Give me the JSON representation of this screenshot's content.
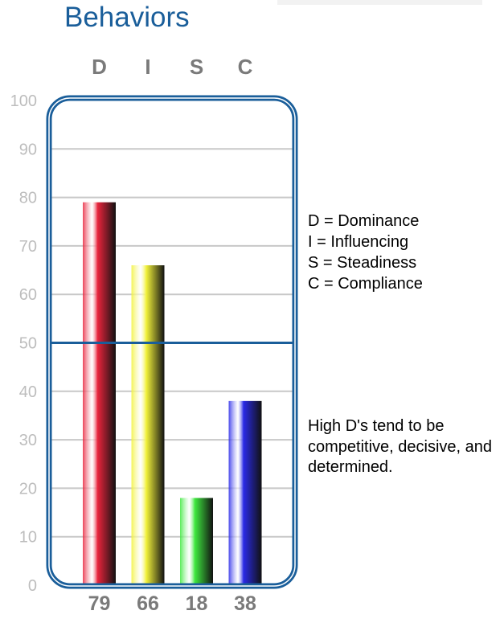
{
  "title": "Behaviors",
  "legend": [
    "D = Dominance",
    "I = Influencing",
    "S = Steadiness",
    "C = Compliance"
  ],
  "note": "High D's tend to be competitive, decisive, and determined.",
  "chart_data": {
    "type": "bar",
    "categories": [
      "D",
      "I",
      "S",
      "C"
    ],
    "values": [
      79,
      66,
      18,
      38
    ],
    "value_labels": [
      "79",
      "66",
      "18",
      "38"
    ],
    "ylim": [
      0,
      100
    ],
    "yticks": [
      0,
      10,
      20,
      30,
      40,
      50,
      60,
      70,
      80,
      90,
      100
    ],
    "reference_line": 50,
    "grid": true,
    "colors": [
      "#e8243c",
      "#f2f23a",
      "#3ee83e",
      "#2a2ae8"
    ],
    "frame_color": "#1a5e9a",
    "tick_color": "#bdbdbd"
  }
}
